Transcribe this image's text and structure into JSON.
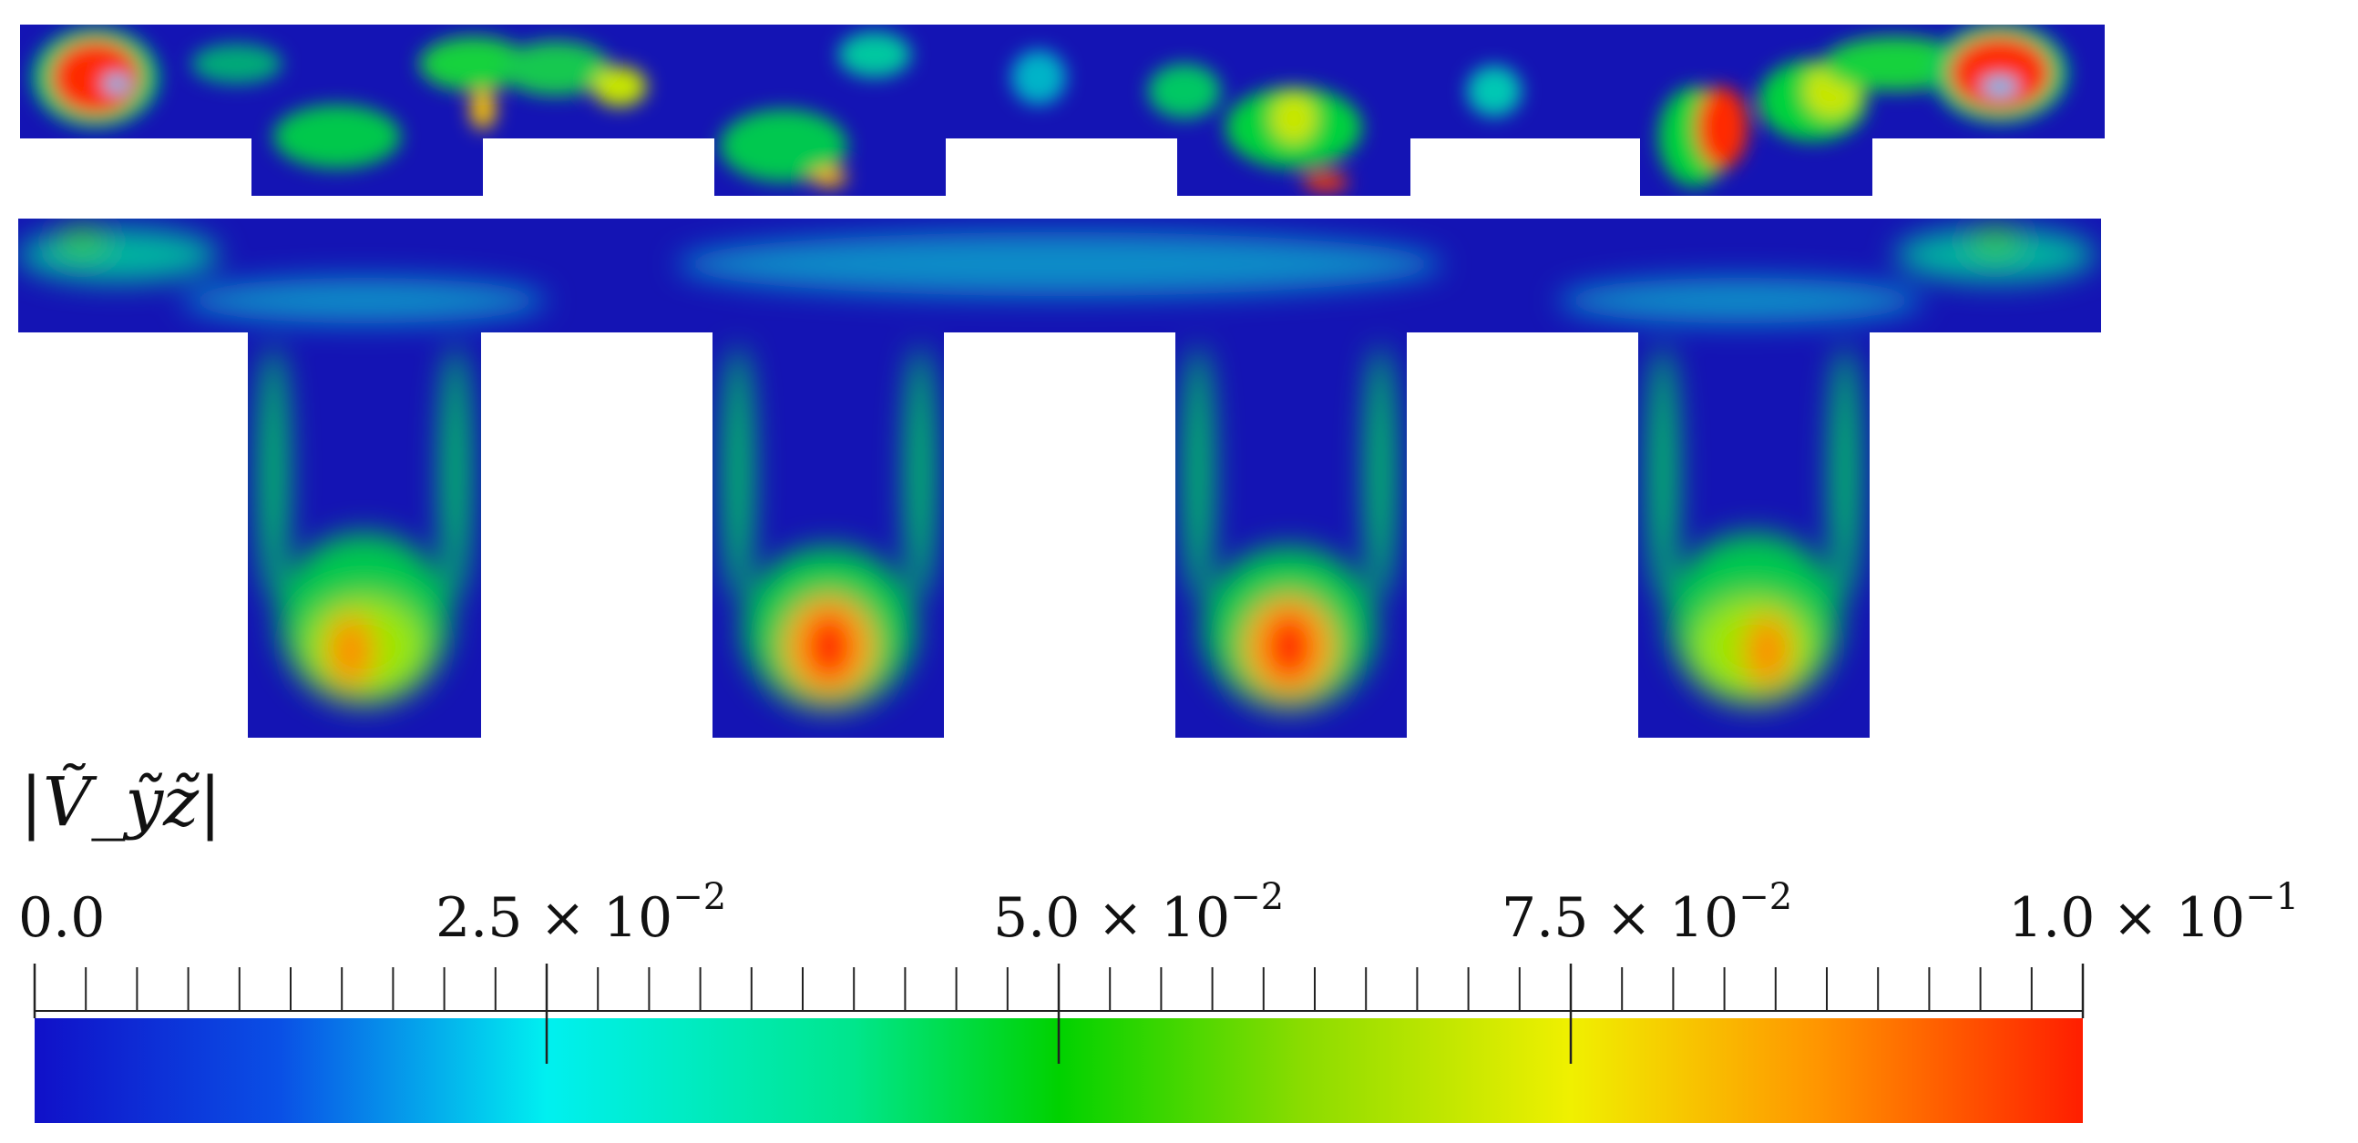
{
  "figure": {
    "panels": [
      {
        "name": "upper-panel"
      },
      {
        "name": "lower-panel"
      }
    ],
    "colorbar": {
      "title": "|Ṽ_ỹz̃|",
      "min": 0.0,
      "max": 0.1,
      "tick_labels": [
        {
          "mantissa": "0.0",
          "exponent": ""
        },
        {
          "mantissa": "2.5 × 10",
          "exponent": "−2"
        },
        {
          "mantissa": "5.0 × 10",
          "exponent": "−2"
        },
        {
          "mantissa": "7.5 × 10",
          "exponent": "−2"
        },
        {
          "mantissa": "1.0 × 10",
          "exponent": "−1"
        }
      ],
      "colormap": [
        "#1010c8",
        "#0a6ef0",
        "#00f0f0",
        "#00dc3c",
        "#00d200",
        "#e6f000",
        "#ffb400",
        "#ff2a00"
      ]
    }
  }
}
